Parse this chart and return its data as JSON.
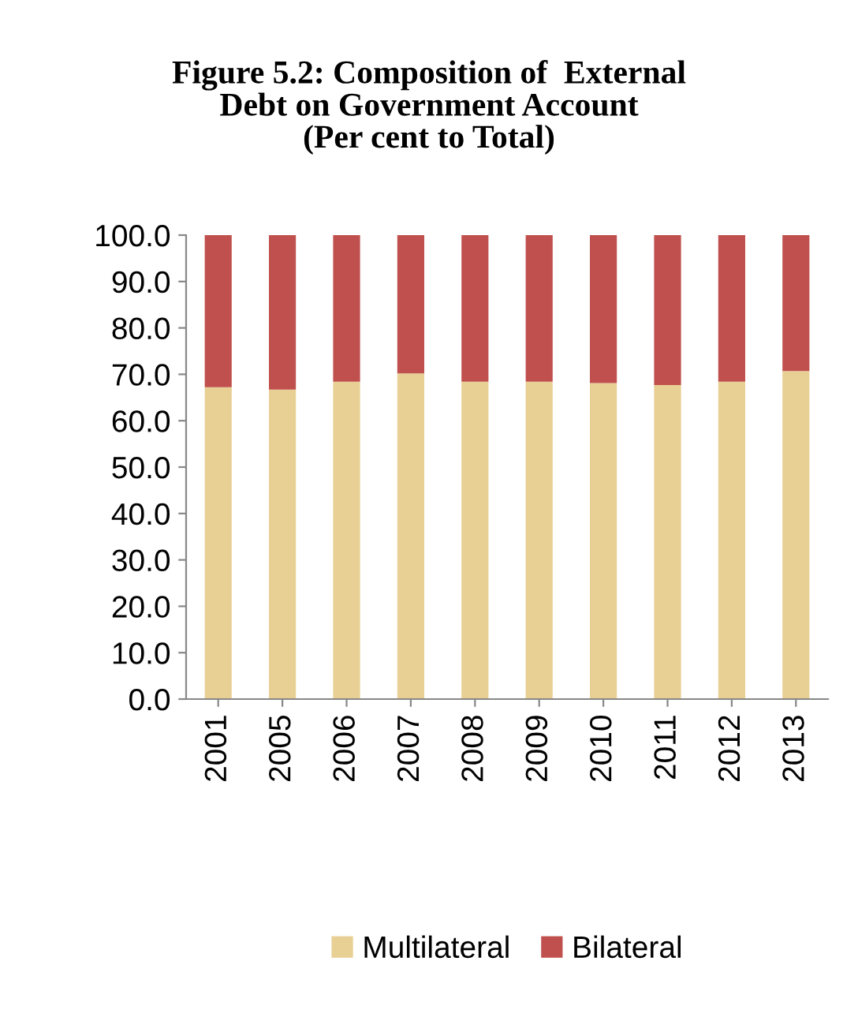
{
  "chart_data": {
    "type": "bar",
    "stacked": true,
    "title": "Figure 5.2: Composition of  External\nDebt on Government Account\n(Per cent to Total)",
    "categories": [
      "2001",
      "2005",
      "2006",
      "2007",
      "2008",
      "2009",
      "2010",
      "2011",
      "2012",
      "2013"
    ],
    "series": [
      {
        "name": "Multilateral",
        "color": "#e8cf94",
        "values": [
          67.2,
          66.7,
          68.4,
          70.2,
          68.4,
          68.4,
          68.1,
          67.7,
          68.4,
          70.7
        ]
      },
      {
        "name": "Bilateral",
        "color": "#c0504d",
        "values": [
          32.8,
          33.3,
          31.6,
          29.8,
          31.6,
          31.6,
          31.9,
          32.3,
          31.6,
          29.3
        ]
      }
    ],
    "ylim": [
      0,
      100
    ],
    "yticks": [
      {
        "value": 0,
        "label": "0.0"
      },
      {
        "value": 10,
        "label": "10.0"
      },
      {
        "value": 20,
        "label": "20.0"
      },
      {
        "value": 30,
        "label": "30.0"
      },
      {
        "value": 40,
        "label": "40.0"
      },
      {
        "value": 50,
        "label": "50.0"
      },
      {
        "value": 60,
        "label": "60.0"
      },
      {
        "value": 70,
        "label": "70.0"
      },
      {
        "value": 80,
        "label": "80.0"
      },
      {
        "value": 90,
        "label": "90.0"
      },
      {
        "value": 100,
        "label": "100.0"
      }
    ],
    "grid": false,
    "legend": "bottom"
  }
}
